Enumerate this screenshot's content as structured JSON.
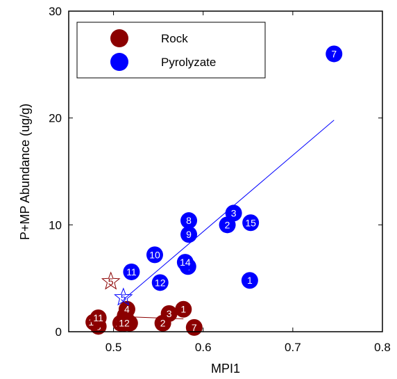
{
  "chart_data": {
    "type": "scatter",
    "title": "",
    "xlabel": "MPI1",
    "ylabel": "P+MP Abundance (ug/g)",
    "xlim": [
      0.45,
      0.8
    ],
    "ylim": [
      0,
      30
    ],
    "x_ticks": [
      "0.5",
      "0.6",
      "0.7",
      "0.8"
    ],
    "y_ticks": [
      "0",
      "10",
      "20",
      "30"
    ],
    "grid": false,
    "legend_position": "top-left",
    "series": [
      {
        "name": "Rock",
        "color": "#8b0000",
        "points": [
          {
            "x": 0.578,
            "y": 2.1,
            "label": "1"
          },
          {
            "x": 0.555,
            "y": 0.8,
            "label": "2"
          },
          {
            "x": 0.562,
            "y": 1.7,
            "label": "3"
          },
          {
            "x": 0.513,
            "y": 1.5,
            "label": "4"
          },
          {
            "x": 0.518,
            "y": 0.8,
            "label": "5"
          },
          {
            "x": 0.59,
            "y": 0.4,
            "label": "7"
          },
          {
            "x": 0.483,
            "y": 0.5,
            "label": "8"
          },
          {
            "x": 0.478,
            "y": 0.9,
            "label": "10"
          },
          {
            "x": 0.483,
            "y": 1.3,
            "label": "11"
          },
          {
            "x": 0.508,
            "y": 0.8,
            "label": "14"
          },
          {
            "x": 0.512,
            "y": 0.8,
            "label": "12"
          },
          {
            "x": 0.515,
            "y": 2.1,
            "label": "4"
          }
        ]
      },
      {
        "name": "Pyrolyzate",
        "color": "#0000ff",
        "points": [
          {
            "x": 0.652,
            "y": 4.8,
            "label": "1"
          },
          {
            "x": 0.627,
            "y": 10.0,
            "label": "2"
          },
          {
            "x": 0.634,
            "y": 11.1,
            "label": "3"
          },
          {
            "x": 0.583,
            "y": 6.1,
            "label": "4"
          },
          {
            "x": 0.746,
            "y": 26.0,
            "label": "7"
          },
          {
            "x": 0.584,
            "y": 10.4,
            "label": "8"
          },
          {
            "x": 0.584,
            "y": 9.1,
            "label": "9"
          },
          {
            "x": 0.546,
            "y": 7.2,
            "label": "10"
          },
          {
            "x": 0.52,
            "y": 5.6,
            "label": "11"
          },
          {
            "x": 0.552,
            "y": 4.6,
            "label": "12"
          },
          {
            "x": 0.58,
            "y": 6.5,
            "label": "14"
          },
          {
            "x": 0.653,
            "y": 10.2,
            "label": "15"
          }
        ]
      }
    ],
    "stars": [
      {
        "x": 0.497,
        "y": 4.7,
        "label": "5",
        "color": "#8b0000"
      },
      {
        "x": 0.511,
        "y": 3.2,
        "label": "5",
        "color": "#0000ff"
      }
    ],
    "fit_lines": [
      {
        "x": [
          0.511,
          0.746
        ],
        "y": [
          3.0,
          19.8
        ],
        "color": "#0000ff"
      },
      {
        "x": [
          0.515,
          0.578
        ],
        "y": [
          1.4,
          1.2
        ],
        "color": "#8b0000"
      }
    ]
  }
}
